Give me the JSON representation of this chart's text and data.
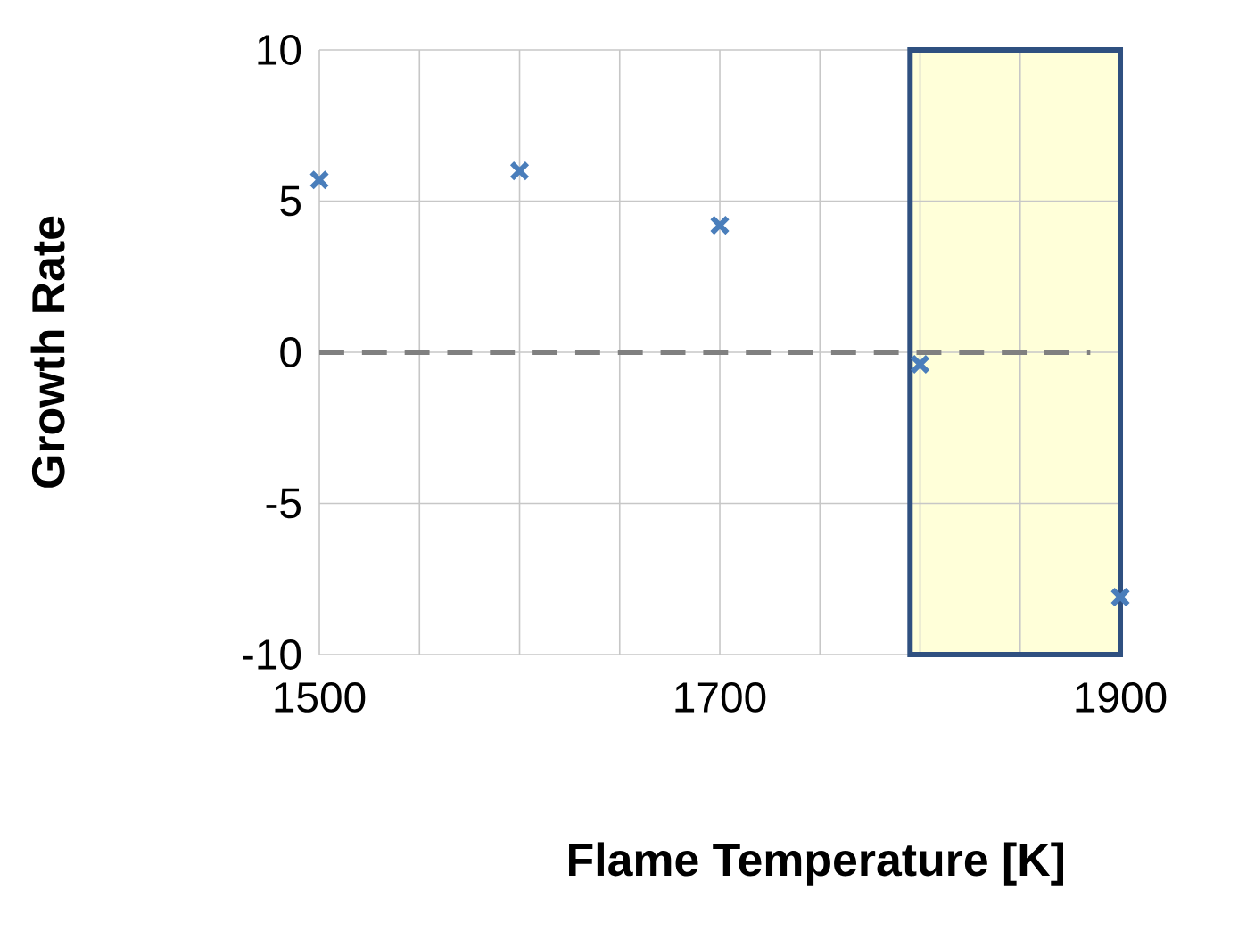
{
  "chart_data": {
    "type": "scatter",
    "xlabel": "Flame Temperature [K]",
    "ylabel": "Growth Rate",
    "xlim": [
      1500,
      1900
    ],
    "ylim": [
      -10,
      10
    ],
    "xticks": [
      1500,
      {
        "value": 1550,
        "label": null
      },
      {
        "value": 1600,
        "label": null
      },
      {
        "value": 1650,
        "label": null
      },
      1700,
      {
        "value": 1750,
        "label": null
      },
      {
        "value": 1800,
        "label": null
      },
      {
        "value": 1850,
        "label": null
      },
      1900
    ],
    "yticks": [
      -10,
      -5,
      0,
      5,
      10
    ],
    "grid": true,
    "marker": "cross",
    "series": [
      {
        "color": "#4a7ebb",
        "x": [
          1500,
          1600,
          1700,
          1800,
          1900
        ],
        "values": [
          5.7,
          6.0,
          4.2,
          -0.4,
          -8.1
        ]
      },
      {
        "type": "line",
        "color": "#808080",
        "line_style": "dashed",
        "marker": "none",
        "x": [
          1500,
          1885
        ],
        "values": [
          0,
          0
        ]
      }
    ],
    "bands": [
      {
        "axis": "x",
        "from": 1795,
        "to": 1900,
        "color": "#ffffd9"
      }
    ]
  }
}
